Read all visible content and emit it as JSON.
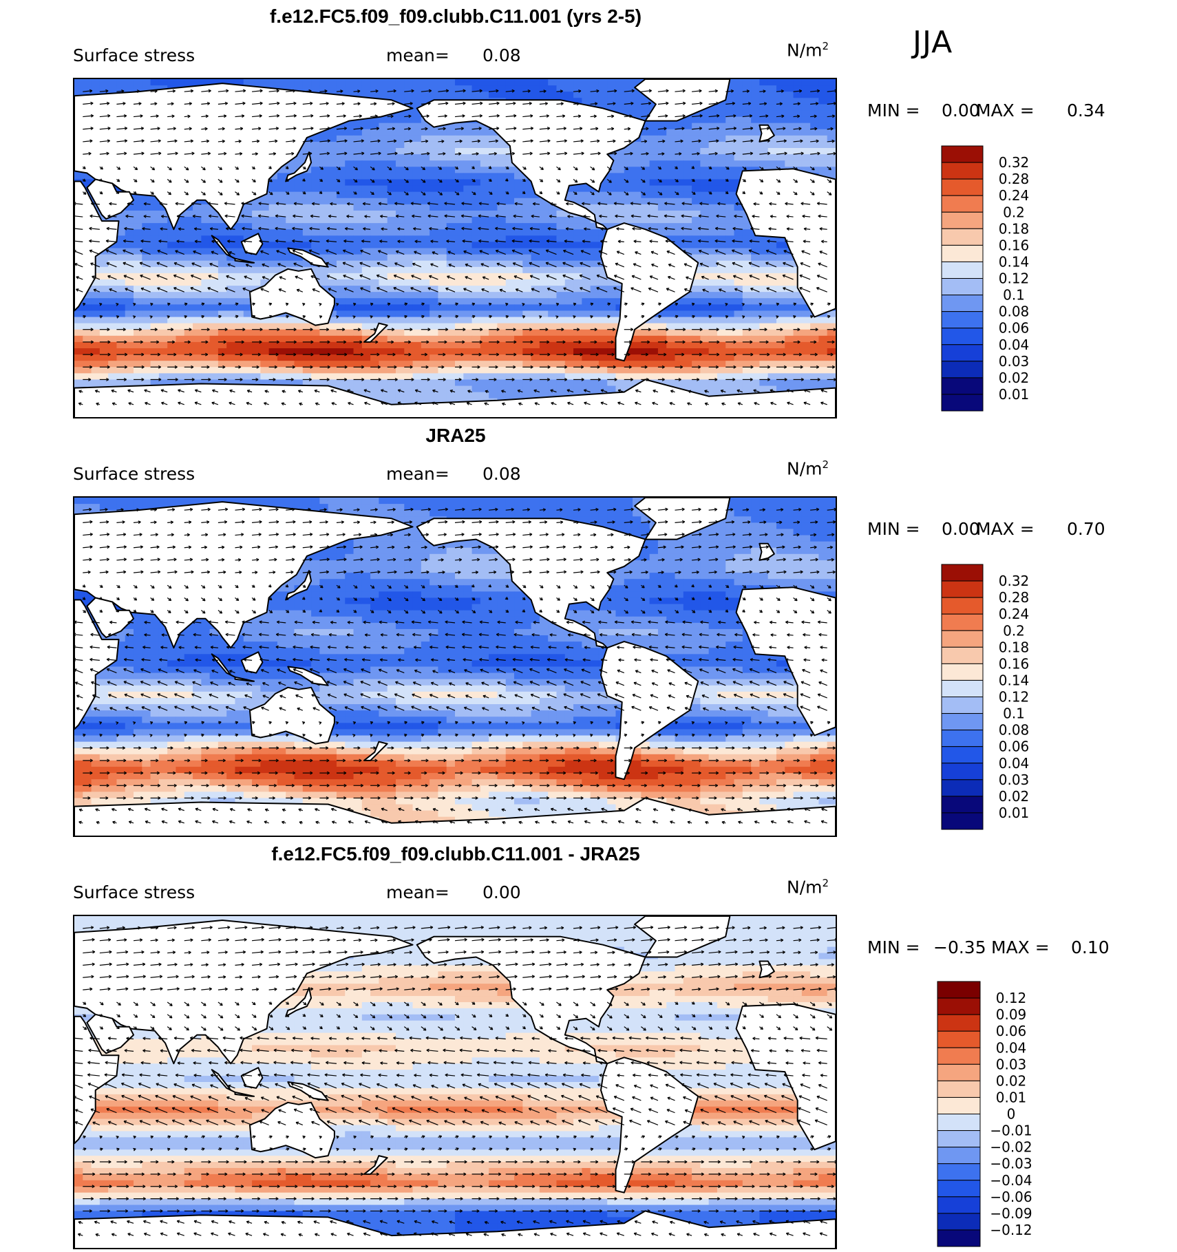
{
  "season": "JJA",
  "colors": {
    "levels12": [
      "#08087a",
      "#0c2cb8",
      "#1640d8",
      "#2257e8",
      "#3d72ef",
      "#6f97f2",
      "#a3bdf5",
      "#d3e2f9",
      "#fce8d6",
      "#f8c9ad",
      "#f5a57f",
      "#f07c50",
      "#e55a2c",
      "#cc3413",
      "#9b0f05"
    ],
    "levels3": [
      "#08087a",
      "#0c2cb8",
      "#1640d8",
      "#2257e8",
      "#3d72ef",
      "#6f97f2",
      "#a3bdf5",
      "#d3e2f9",
      "#fce8d6",
      "#f8c9ad",
      "#f5a57f",
      "#f07c50",
      "#e55a2c",
      "#cc3413",
      "#9b0f05",
      "#7a0000"
    ]
  },
  "panels": [
    {
      "title": "f.e12.FC5.f09_f09.clubb.C11.001 (yrs 2-5)",
      "variable": "Surface stress",
      "mean_label": "mean=",
      "mean_value": "0.08",
      "units": "N/m",
      "units_sup": "2",
      "min_label": "MIN =",
      "min_value": "0.00",
      "max_label": "MAX =",
      "max_value": "0.34",
      "colorbar_labels": [
        "0.32",
        "0.28",
        "0.24",
        "0.2",
        "0.18",
        "0.16",
        "0.14",
        "0.12",
        "0.1",
        "0.08",
        "0.06",
        "0.04",
        "0.03",
        "0.02",
        "0.01"
      ]
    },
    {
      "title": "JRA25",
      "variable": "Surface stress",
      "mean_label": "mean=",
      "mean_value": "0.08",
      "units": "N/m",
      "units_sup": "2",
      "min_label": "MIN =",
      "min_value": "0.00",
      "max_label": "MAX =",
      "max_value": "0.70",
      "colorbar_labels": [
        "0.32",
        "0.28",
        "0.24",
        "0.2",
        "0.18",
        "0.16",
        "0.14",
        "0.12",
        "0.1",
        "0.08",
        "0.06",
        "0.04",
        "0.03",
        "0.02",
        "0.01"
      ]
    },
    {
      "title": "f.e12.FC5.f09_f09.clubb.C11.001 - JRA25",
      "variable": "Surface stress",
      "mean_label": "mean=",
      "mean_value": "0.00",
      "units": "N/m",
      "units_sup": "2",
      "min_label": "MIN =",
      "min_value": "−0.35",
      "max_label": "MAX =",
      "max_value": "0.10",
      "colorbar_labels": [
        "0.12",
        "0.09",
        "0.06",
        "0.04",
        "0.03",
        "0.02",
        "0.01",
        "0",
        "−0.01",
        "−0.02",
        "−0.03",
        "−0.04",
        "−0.06",
        "−0.09",
        "−0.12"
      ]
    }
  ],
  "chart_data": [
    {
      "type": "heatmap",
      "title": "f.e12.FC5.f09_f09.clubb.C11.001 (yrs 2-5)",
      "subtitle": "Surface stress",
      "units": "N/m2",
      "season": "JJA",
      "mean": 0.08,
      "min": 0.0,
      "max": 0.34,
      "contour_levels": [
        0.01,
        0.02,
        0.03,
        0.04,
        0.06,
        0.08,
        0.1,
        0.12,
        0.14,
        0.16,
        0.18,
        0.2,
        0.24,
        0.28,
        0.32
      ],
      "field_bands": [
        {
          "lat": 60,
          "value": 0.05
        },
        {
          "lat": 45,
          "value": 0.09
        },
        {
          "lat": 30,
          "value": 0.04
        },
        {
          "lat": 15,
          "value": 0.08
        },
        {
          "lat": 0,
          "value": 0.04
        },
        {
          "lat": -15,
          "value": 0.12
        },
        {
          "lat": -30,
          "value": 0.04
        },
        {
          "lat": -50,
          "value": 0.26
        },
        {
          "lat": -65,
          "value": 0.08
        }
      ]
    },
    {
      "type": "heatmap",
      "title": "JRA25",
      "subtitle": "Surface stress",
      "units": "N/m2",
      "season": "JJA",
      "mean": 0.08,
      "min": 0.0,
      "max": 0.7,
      "contour_levels": [
        0.01,
        0.02,
        0.03,
        0.04,
        0.06,
        0.08,
        0.1,
        0.12,
        0.14,
        0.16,
        0.18,
        0.2,
        0.24,
        0.28,
        0.32
      ],
      "field_bands": [
        {
          "lat": 60,
          "value": 0.06
        },
        {
          "lat": 45,
          "value": 0.08
        },
        {
          "lat": 30,
          "value": 0.04
        },
        {
          "lat": 15,
          "value": 0.07
        },
        {
          "lat": 0,
          "value": 0.04
        },
        {
          "lat": -15,
          "value": 0.11
        },
        {
          "lat": -30,
          "value": 0.04
        },
        {
          "lat": -50,
          "value": 0.24
        },
        {
          "lat": -65,
          "value": 0.12
        }
      ]
    },
    {
      "type": "heatmap",
      "title": "f.e12.FC5.f09_f09.clubb.C11.001 - JRA25",
      "subtitle": "Surface stress",
      "units": "N/m2",
      "season": "JJA",
      "mean": 0.0,
      "min": -0.35,
      "max": 0.1,
      "contour_levels": [
        -0.12,
        -0.09,
        -0.06,
        -0.04,
        -0.03,
        -0.02,
        -0.01,
        0,
        0.01,
        0.02,
        0.03,
        0.04,
        0.06,
        0.09,
        0.12
      ],
      "field_bands": [
        {
          "lat": 60,
          "value": -0.01
        },
        {
          "lat": 45,
          "value": 0.02
        },
        {
          "lat": 30,
          "value": -0.01
        },
        {
          "lat": 15,
          "value": 0.01
        },
        {
          "lat": 0,
          "value": -0.01
        },
        {
          "lat": -15,
          "value": 0.03
        },
        {
          "lat": -30,
          "value": -0.02
        },
        {
          "lat": -50,
          "value": 0.04
        },
        {
          "lat": -65,
          "value": -0.04
        }
      ]
    }
  ]
}
